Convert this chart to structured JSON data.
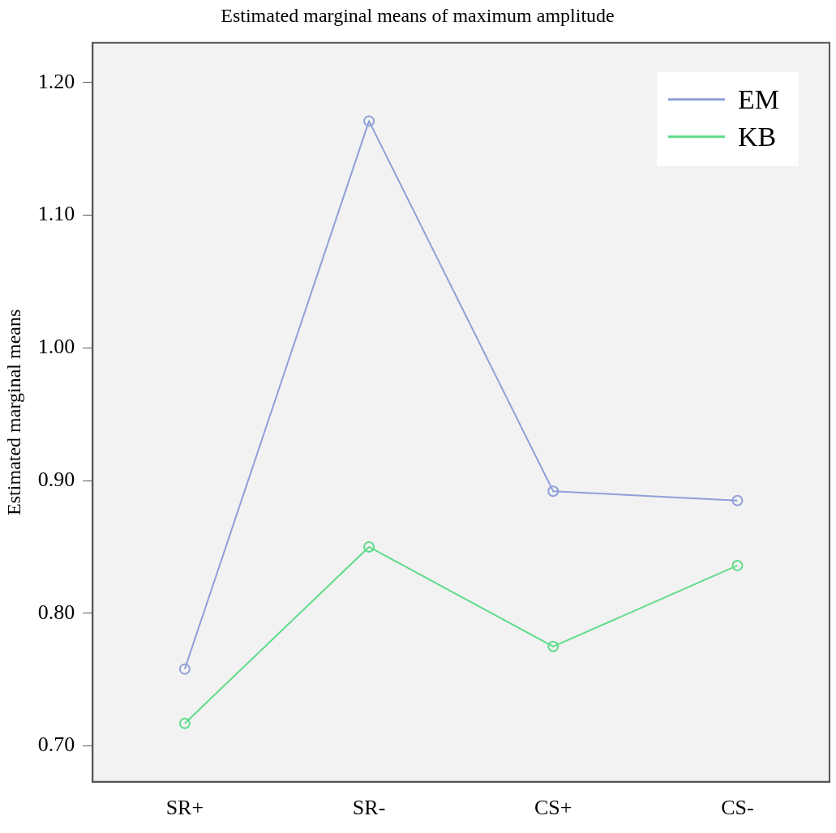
{
  "chart_data": {
    "type": "line",
    "title": "Estimated marginal means of maximum amplitude",
    "ylabel": "Estimated marginal means",
    "categories": [
      "SR+",
      "SR-",
      "CS+",
      "CS-"
    ],
    "series": [
      {
        "name": "EM",
        "color": "#8f9fd8",
        "values": [
          0.758,
          1.171,
          0.892,
          0.885
        ]
      },
      {
        "name": "KB",
        "color": "#5fdb8a",
        "values": [
          0.717,
          0.85,
          0.775,
          0.836
        ]
      }
    ],
    "ylim": [
      0.673,
      1.23
    ],
    "yticks": [
      {
        "value": 0.7,
        "label": "0.70"
      },
      {
        "value": 0.8,
        "label": "0.80"
      },
      {
        "value": 0.9,
        "label": "0.90"
      },
      {
        "value": 1.0,
        "label": "1.00"
      },
      {
        "value": 1.1,
        "label": "1.10"
      },
      {
        "value": 1.2,
        "label": "1.20"
      }
    ],
    "grid": false,
    "legend": "top right",
    "marker": "circle",
    "line_style": "solid"
  }
}
